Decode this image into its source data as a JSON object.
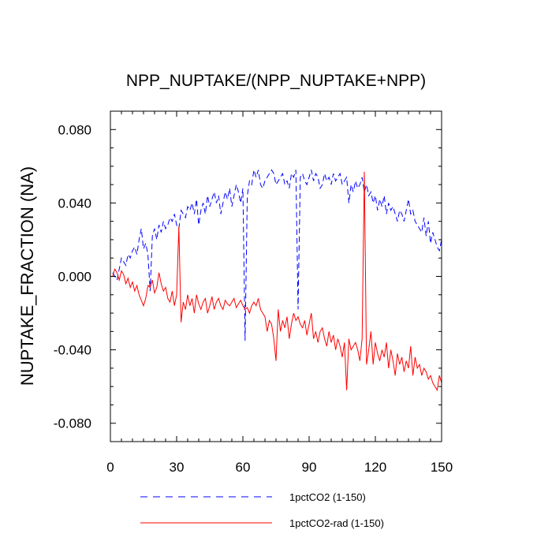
{
  "chart_data": {
    "type": "line",
    "title": "NPP_NUPTAKE/(NPP_NUPTAKE+NPP)",
    "xlabel": "",
    "ylabel": "NUPTAKE_FRACTION  (NA)",
    "xlim": [
      0,
      150
    ],
    "ylim": [
      -0.09,
      0.09
    ],
    "xticks": [
      0,
      30,
      60,
      90,
      120,
      150
    ],
    "xtick_labels": [
      "0",
      "30",
      "60",
      "90",
      "120",
      "150"
    ],
    "yticks": [
      -0.08,
      -0.04,
      0.0,
      0.04,
      0.08
    ],
    "ytick_labels": [
      "-0.080",
      "-0.040",
      "0.000",
      "0.040",
      "0.080"
    ],
    "grid": false,
    "legend_position": "bottom",
    "series": [
      {
        "name": "1pctCO2 (1-150)",
        "color": "#0000ff",
        "dash": "dashed",
        "x": [
          1,
          2,
          3,
          4,
          5,
          6,
          7,
          8,
          9,
          10,
          11,
          12,
          13,
          14,
          15,
          16,
          17,
          18,
          19,
          20,
          21,
          22,
          23,
          24,
          25,
          26,
          27,
          28,
          29,
          30,
          31,
          32,
          33,
          34,
          35,
          36,
          37,
          38,
          39,
          40,
          41,
          42,
          43,
          44,
          45,
          46,
          47,
          48,
          49,
          50,
          51,
          52,
          53,
          54,
          55,
          56,
          57,
          58,
          59,
          60,
          61,
          62,
          63,
          64,
          65,
          66,
          67,
          68,
          69,
          70,
          71,
          72,
          73,
          74,
          75,
          76,
          77,
          78,
          79,
          80,
          81,
          82,
          83,
          84,
          85,
          86,
          87,
          88,
          89,
          90,
          91,
          92,
          93,
          94,
          95,
          96,
          97,
          98,
          99,
          100,
          101,
          102,
          103,
          104,
          105,
          106,
          107,
          108,
          109,
          110,
          111,
          112,
          113,
          114,
          115,
          116,
          117,
          118,
          119,
          120,
          121,
          122,
          123,
          124,
          125,
          126,
          127,
          128,
          129,
          130,
          131,
          132,
          133,
          134,
          135,
          136,
          137,
          138,
          139,
          140,
          141,
          142,
          143,
          144,
          145,
          146,
          147,
          148,
          149,
          150
        ],
        "y": [
          0.002,
          0.0,
          -0.002,
          0.004,
          0.01,
          0.008,
          0.006,
          0.012,
          0.01,
          0.014,
          0.016,
          0.012,
          0.02,
          0.026,
          0.015,
          0.018,
          0.012,
          -0.008,
          0.022,
          0.026,
          0.02,
          0.028,
          0.024,
          0.03,
          0.026,
          0.028,
          0.032,
          0.03,
          0.034,
          0.028,
          0.026,
          0.036,
          0.034,
          0.032,
          0.038,
          0.036,
          0.04,
          0.034,
          0.042,
          0.028,
          0.036,
          0.04,
          0.034,
          0.044,
          0.038,
          0.042,
          0.046,
          0.04,
          0.044,
          0.034,
          0.04,
          0.046,
          0.042,
          0.048,
          0.038,
          0.044,
          0.05,
          0.046,
          0.04,
          0.048,
          -0.035,
          0.044,
          0.052,
          0.05,
          0.058,
          0.054,
          0.058,
          0.05,
          0.048,
          0.052,
          0.054,
          0.056,
          0.058,
          0.056,
          0.05,
          0.052,
          0.054,
          0.056,
          0.05,
          0.052,
          0.048,
          0.056,
          0.054,
          0.058,
          -0.018,
          0.054,
          0.056,
          0.052,
          0.05,
          0.054,
          0.058,
          0.052,
          0.056,
          0.054,
          0.048,
          0.05,
          0.056,
          0.052,
          0.054,
          0.05,
          0.056,
          0.052,
          0.054,
          0.056,
          0.05,
          0.052,
          0.054,
          0.04,
          0.05,
          0.046,
          0.052,
          0.048,
          0.05,
          0.054,
          0.046,
          0.05,
          0.044,
          0.046,
          0.04,
          0.044,
          0.036,
          0.042,
          0.038,
          0.044,
          0.034,
          0.04,
          0.036,
          0.038,
          0.034,
          0.03,
          0.036,
          0.034,
          0.03,
          0.036,
          0.042,
          0.034,
          0.036,
          0.03,
          0.028,
          0.026,
          0.024,
          0.032,
          0.022,
          0.03,
          0.018,
          0.024,
          0.02,
          0.016,
          0.014,
          0.02
        ]
      },
      {
        "name": "1pctCO2-rad (1-150)",
        "color": "#ff0000",
        "dash": "solid",
        "x": [
          1,
          2,
          3,
          4,
          5,
          6,
          7,
          8,
          9,
          10,
          11,
          12,
          13,
          14,
          15,
          16,
          17,
          18,
          19,
          20,
          21,
          22,
          23,
          24,
          25,
          26,
          27,
          28,
          29,
          30,
          31,
          32,
          33,
          34,
          35,
          36,
          37,
          38,
          39,
          40,
          41,
          42,
          43,
          44,
          45,
          46,
          47,
          48,
          49,
          50,
          51,
          52,
          53,
          54,
          55,
          56,
          57,
          58,
          59,
          60,
          61,
          62,
          63,
          64,
          65,
          66,
          67,
          68,
          69,
          70,
          71,
          72,
          73,
          74,
          75,
          76,
          77,
          78,
          79,
          80,
          81,
          82,
          83,
          84,
          85,
          86,
          87,
          88,
          89,
          90,
          91,
          92,
          93,
          94,
          95,
          96,
          97,
          98,
          99,
          100,
          101,
          102,
          103,
          104,
          105,
          106,
          107,
          108,
          109,
          110,
          111,
          112,
          113,
          114,
          115,
          116,
          117,
          118,
          119,
          120,
          121,
          122,
          123,
          124,
          125,
          126,
          127,
          128,
          129,
          130,
          131,
          132,
          133,
          134,
          135,
          136,
          137,
          138,
          139,
          140,
          141,
          142,
          143,
          144,
          145,
          146,
          147,
          148,
          149,
          150
        ],
        "y": [
          0.0,
          0.004,
          0.002,
          -0.002,
          0.003,
          0.001,
          -0.004,
          -0.001,
          -0.006,
          -0.003,
          -0.008,
          -0.005,
          -0.01,
          -0.013,
          -0.016,
          -0.012,
          -0.005,
          -0.006,
          -0.002,
          -0.009,
          -0.006,
          0.002,
          -0.004,
          -0.008,
          -0.006,
          -0.012,
          -0.014,
          -0.008,
          -0.016,
          -0.01,
          0.027,
          -0.025,
          -0.014,
          -0.018,
          -0.01,
          -0.016,
          -0.012,
          -0.02,
          -0.01,
          -0.015,
          -0.018,
          -0.014,
          -0.012,
          -0.02,
          -0.016,
          -0.011,
          -0.018,
          -0.014,
          -0.012,
          -0.016,
          -0.018,
          -0.013,
          -0.015,
          -0.016,
          -0.014,
          -0.012,
          -0.017,
          -0.015,
          -0.013,
          -0.016,
          -0.018,
          -0.017,
          -0.02,
          -0.016,
          -0.014,
          -0.016,
          -0.012,
          -0.018,
          -0.02,
          -0.022,
          -0.03,
          -0.024,
          -0.026,
          -0.034,
          -0.046,
          -0.018,
          -0.03,
          -0.024,
          -0.028,
          -0.022,
          -0.034,
          -0.026,
          -0.02,
          -0.024,
          -0.022,
          -0.026,
          -0.028,
          -0.024,
          -0.032,
          -0.026,
          -0.02,
          -0.034,
          -0.03,
          -0.036,
          -0.03,
          -0.028,
          -0.034,
          -0.038,
          -0.03,
          -0.036,
          -0.032,
          -0.04,
          -0.034,
          -0.038,
          -0.044,
          -0.036,
          -0.062,
          -0.034,
          -0.04,
          -0.038,
          -0.036,
          -0.04,
          -0.046,
          -0.034,
          0.057,
          -0.048,
          -0.04,
          -0.03,
          -0.048,
          -0.036,
          -0.042,
          -0.046,
          -0.04,
          -0.044,
          -0.036,
          -0.05,
          -0.04,
          -0.046,
          -0.054,
          -0.042,
          -0.048,
          -0.044,
          -0.052,
          -0.046,
          -0.05,
          -0.038,
          -0.054,
          -0.044,
          -0.05,
          -0.048,
          -0.054,
          -0.05,
          -0.052,
          -0.056,
          -0.054,
          -0.058,
          -0.06,
          -0.062,
          -0.054,
          -0.058
        ]
      }
    ]
  }
}
